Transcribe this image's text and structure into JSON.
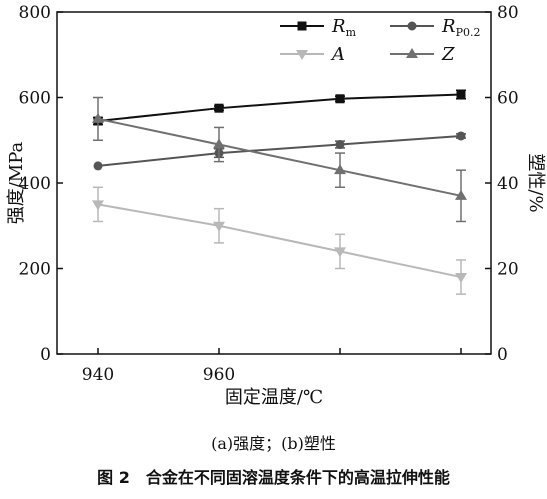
{
  "chart_data": {
    "type": "line",
    "x_ticks": [
      "940",
      "960"
    ],
    "xlabel": "固定温度/℃",
    "ylabel_left": "强度/MPa",
    "ylabel_right": "塑性/%",
    "ylim_left": [
      0,
      800
    ],
    "ylim_right": [
      0,
      80
    ],
    "yticks_left": [
      "0",
      "200",
      "400",
      "600",
      "800"
    ],
    "yticks_right": [
      "0",
      "20",
      "40",
      "60",
      "80"
    ],
    "grid": false,
    "legend_position": "top-right",
    "series": [
      {
        "name": "R",
        "name_sub": "m",
        "axis": "left",
        "marker": "square",
        "color": "#111111",
        "x": [
          940,
          960,
          980,
          1000
        ],
        "values": [
          545,
          575,
          597,
          607
        ],
        "errors": [
          8,
          5,
          6,
          10
        ]
      },
      {
        "name": "R",
        "name_sub": "P0.2",
        "axis": "left",
        "marker": "circle",
        "color": "#555555",
        "x": [
          940,
          960,
          980,
          1000
        ],
        "values": [
          440,
          470,
          490,
          510
        ],
        "errors": [
          0,
          10,
          8,
          5
        ]
      },
      {
        "name": "A",
        "axis": "right",
        "marker": "triangle-down",
        "color": "#b8b8b8",
        "x": [
          940,
          960,
          980,
          1000
        ],
        "values": [
          35,
          30,
          24,
          18
        ],
        "errors": [
          4,
          4,
          4,
          4
        ]
      },
      {
        "name": "Z",
        "axis": "right",
        "marker": "triangle-up",
        "color": "#707070",
        "x": [
          940,
          960,
          980,
          1000
        ],
        "values": [
          55,
          49,
          43,
          37
        ],
        "errors": [
          5,
          4,
          4,
          6
        ]
      }
    ]
  },
  "caption": {
    "subcaption": "(a)强度；(b)塑性",
    "figure": "图 2　合金在不同固溶温度条件下的高温拉伸性能"
  }
}
